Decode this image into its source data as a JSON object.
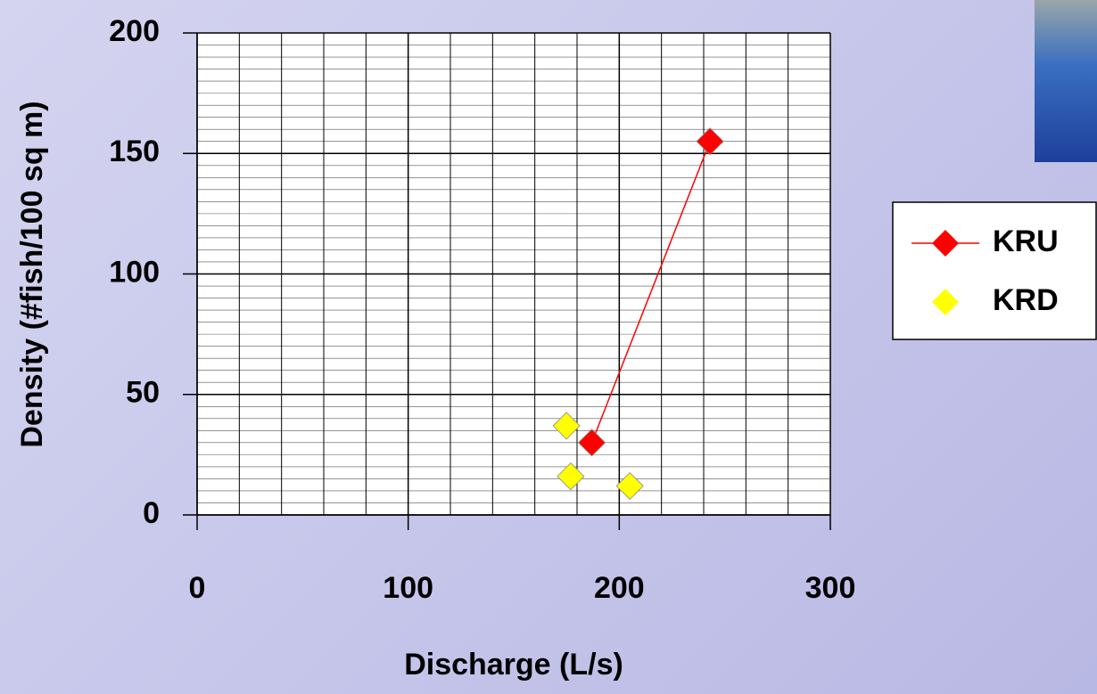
{
  "chart_data": {
    "type": "scatter",
    "xlabel": "Discharge (L/s)",
    "ylabel": "Density (#fish/100 sq m)",
    "xlim": [
      0,
      300
    ],
    "xticks": [
      0,
      100,
      200,
      300
    ],
    "ylim": [
      0,
      200
    ],
    "yticks": [
      0,
      50,
      100,
      150,
      200
    ],
    "grid": true,
    "legend": "right",
    "series": [
      {
        "name": "KRU",
        "color": "#ff0000",
        "line": true,
        "x": [
          187,
          243
        ],
        "values": [
          30,
          155
        ]
      },
      {
        "name": "KRD",
        "color": "#ffff00",
        "line": false,
        "x": [
          175,
          177,
          205
        ],
        "values": [
          37,
          16,
          12
        ]
      }
    ]
  }
}
